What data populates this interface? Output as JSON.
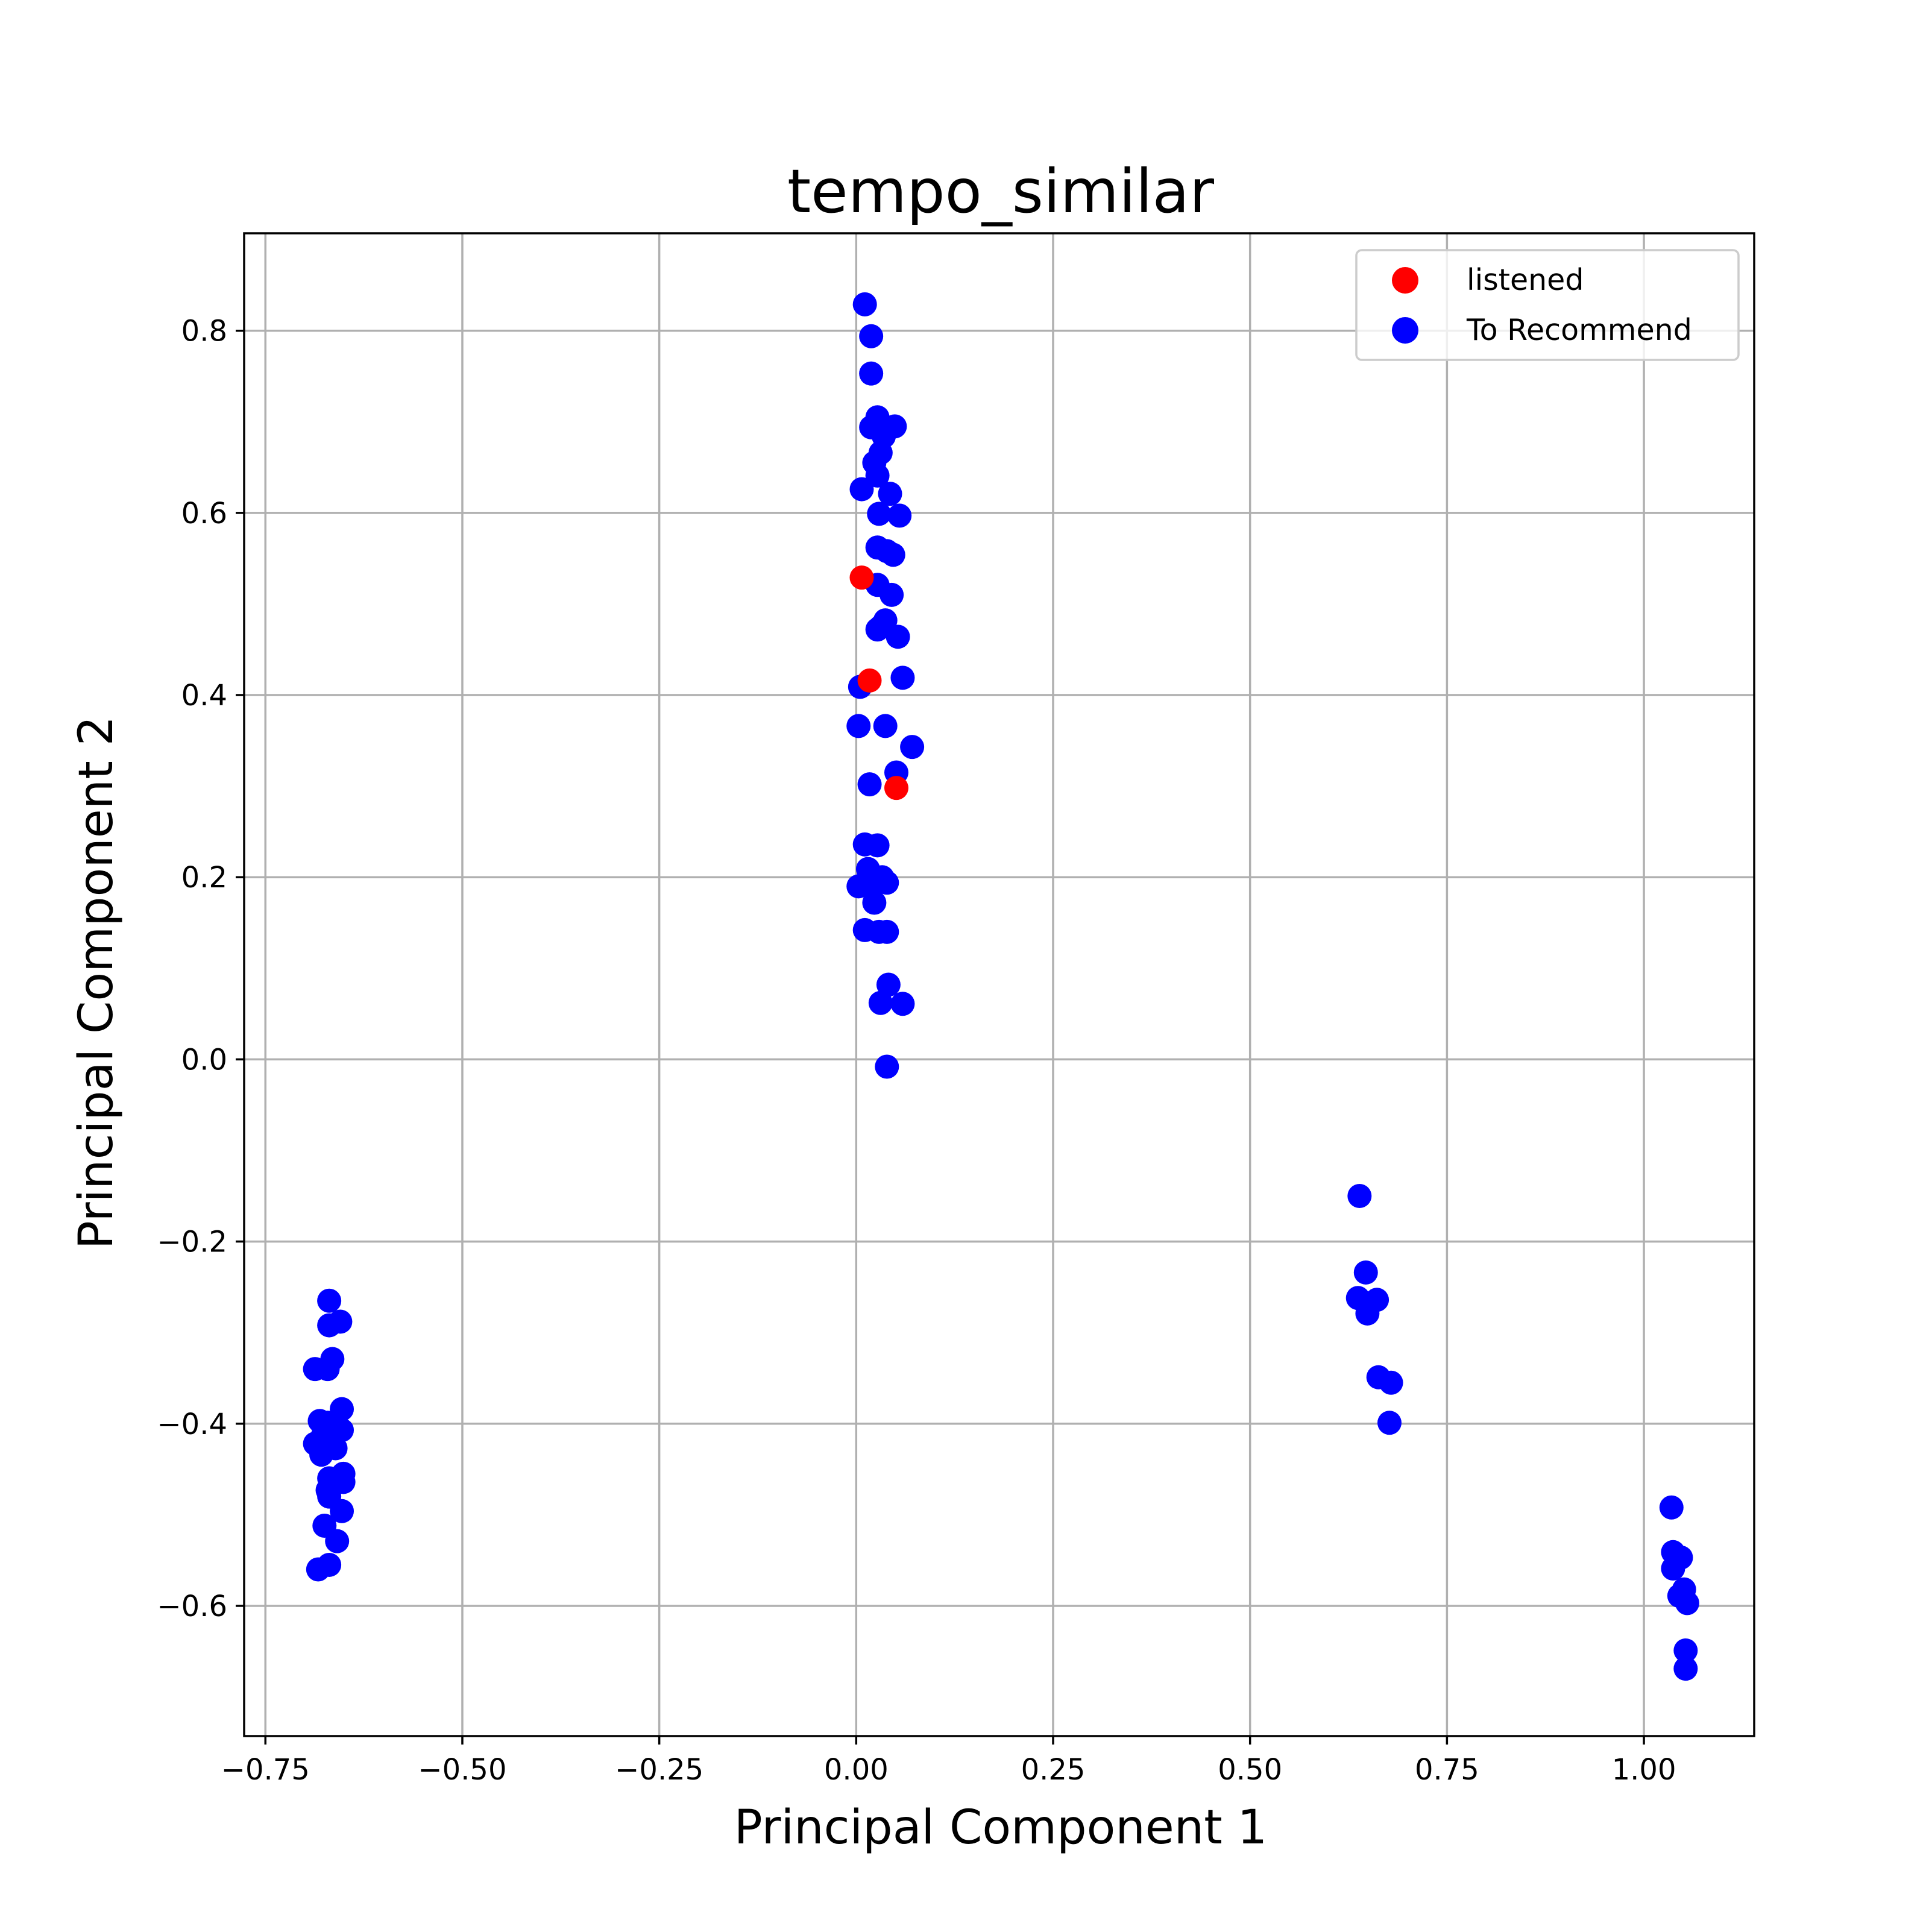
{
  "chart_data": {
    "type": "scatter",
    "title": "tempo_similar",
    "xlabel": "Principal Component 1",
    "ylabel": "Principal Component 2",
    "xlim": [
      -0.777,
      1.14
    ],
    "ylim": [
      -0.743,
      0.907
    ],
    "xticks": [
      -0.75,
      -0.5,
      -0.25,
      0.0,
      0.25,
      0.5,
      0.75,
      1.0
    ],
    "xtick_labels": [
      "−0.75",
      "−0.50",
      "−0.25",
      "0.00",
      "0.25",
      "0.50",
      "0.75",
      "1.00"
    ],
    "yticks": [
      -0.6,
      -0.4,
      -0.2,
      0.0,
      0.2,
      0.4,
      0.6,
      0.8
    ],
    "ytick_labels": [
      "−0.6",
      "−0.4",
      "−0.2",
      "0.0",
      "0.2",
      "0.4",
      "0.6",
      "0.8"
    ],
    "grid": true,
    "legend_position": "top-right",
    "series": [
      {
        "name": "To Recommend",
        "color": "#0000ff",
        "points": [
          [
            0.011,
            0.829
          ],
          [
            0.019,
            0.794
          ],
          [
            0.019,
            0.753
          ],
          [
            0.027,
            0.705
          ],
          [
            0.019,
            0.694
          ],
          [
            0.049,
            0.695
          ],
          [
            0.035,
            0.684
          ],
          [
            0.031,
            0.666
          ],
          [
            0.023,
            0.655
          ],
          [
            0.027,
            0.641
          ],
          [
            0.007,
            0.626
          ],
          [
            0.043,
            0.621
          ],
          [
            0.029,
            0.599
          ],
          [
            0.055,
            0.597
          ],
          [
            0.027,
            0.562
          ],
          [
            0.039,
            0.558
          ],
          [
            0.047,
            0.554
          ],
          [
            0.027,
            0.521
          ],
          [
            0.045,
            0.51
          ],
          [
            0.037,
            0.482
          ],
          [
            0.031,
            0.475
          ],
          [
            0.027,
            0.472
          ],
          [
            0.053,
            0.464
          ],
          [
            0.059,
            0.419
          ],
          [
            0.005,
            0.409
          ],
          [
            0.003,
            0.366
          ],
          [
            0.037,
            0.366
          ],
          [
            0.071,
            0.343
          ],
          [
            0.051,
            0.315
          ],
          [
            0.017,
            0.302
          ],
          [
            0.011,
            0.236
          ],
          [
            0.027,
            0.235
          ],
          [
            0.015,
            0.209
          ],
          [
            0.003,
            0.19
          ],
          [
            0.019,
            0.192
          ],
          [
            0.039,
            0.194
          ],
          [
            0.033,
            0.2
          ],
          [
            0.023,
            0.172
          ],
          [
            0.011,
            0.142
          ],
          [
            0.029,
            0.14
          ],
          [
            0.039,
            0.14
          ],
          [
            0.041,
            0.082
          ],
          [
            0.031,
            0.062
          ],
          [
            0.059,
            0.061
          ],
          [
            0.039,
            -0.008
          ],
          [
            0.639,
            -0.15
          ],
          [
            0.647,
            -0.234
          ],
          [
            0.637,
            -0.262
          ],
          [
            0.661,
            -0.264
          ],
          [
            0.649,
            -0.279
          ],
          [
            0.663,
            -0.349
          ],
          [
            0.679,
            -0.355
          ],
          [
            0.677,
            -0.399
          ],
          [
            -0.669,
            -0.265
          ],
          [
            -0.655,
            -0.288
          ],
          [
            -0.669,
            -0.292
          ],
          [
            -0.665,
            -0.329
          ],
          [
            -0.671,
            -0.34
          ],
          [
            -0.687,
            -0.34
          ],
          [
            -0.653,
            -0.384
          ],
          [
            -0.681,
            -0.397
          ],
          [
            -0.671,
            -0.399
          ],
          [
            -0.665,
            -0.405
          ],
          [
            -0.653,
            -0.407
          ],
          [
            -0.677,
            -0.413
          ],
          [
            -0.687,
            -0.422
          ],
          [
            -0.661,
            -0.427
          ],
          [
            -0.679,
            -0.434
          ],
          [
            -0.651,
            -0.455
          ],
          [
            -0.669,
            -0.46
          ],
          [
            -0.651,
            -0.464
          ],
          [
            -0.665,
            -0.467
          ],
          [
            -0.671,
            -0.473
          ],
          [
            -0.669,
            -0.48
          ],
          [
            -0.653,
            -0.496
          ],
          [
            -0.675,
            -0.512
          ],
          [
            -0.659,
            -0.529
          ],
          [
            -0.669,
            -0.555
          ],
          [
            -0.683,
            -0.56
          ],
          [
            1.035,
            -0.492
          ],
          [
            1.037,
            -0.541
          ],
          [
            1.047,
            -0.547
          ],
          [
            1.037,
            -0.559
          ],
          [
            1.051,
            -0.582
          ],
          [
            1.045,
            -0.589
          ],
          [
            1.055,
            -0.597
          ],
          [
            1.053,
            -0.649
          ],
          [
            1.053,
            -0.669
          ]
        ]
      },
      {
        "name": "listened",
        "color": "#ff0000",
        "points": [
          [
            0.007,
            0.529
          ],
          [
            0.017,
            0.416
          ],
          [
            0.051,
            0.298
          ]
        ]
      }
    ]
  }
}
